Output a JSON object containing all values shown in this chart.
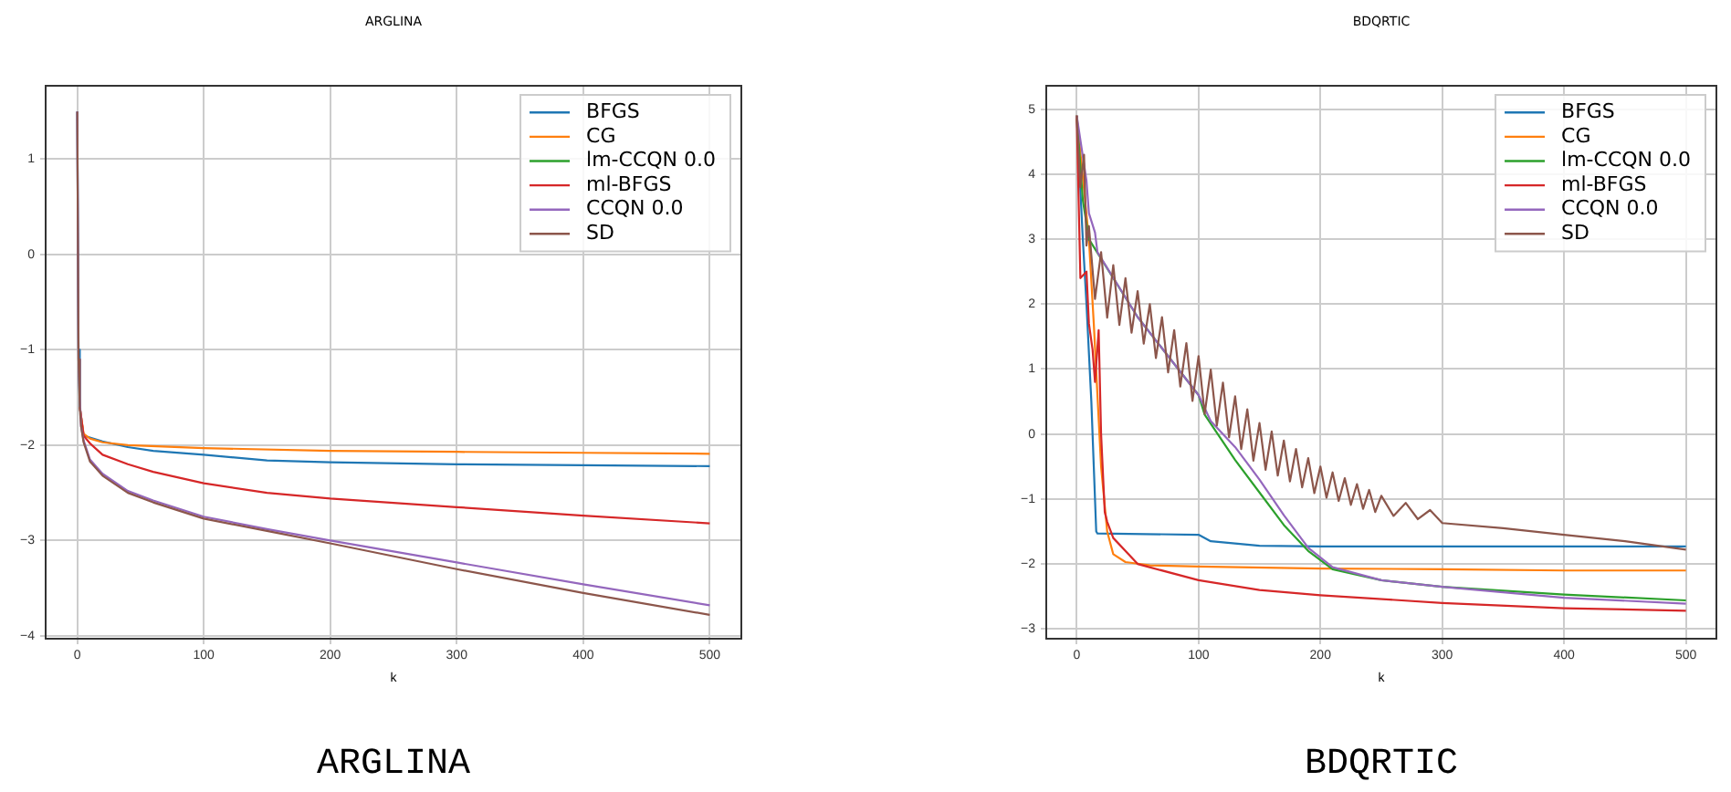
{
  "chart_data": [
    {
      "type": "line",
      "title": "ARGLINA",
      "xlabel": "k",
      "annotations": [
        "ARGLINA"
      ],
      "xlim": [
        -25,
        525
      ],
      "ylim": [
        -4.03,
        1.77
      ],
      "xticks": [
        0,
        100,
        200,
        300,
        400,
        500
      ],
      "yticks": [
        -4,
        -3,
        -2,
        -1,
        0,
        1
      ],
      "grid": true,
      "legend": "top right",
      "series": [
        {
          "name": "BFGS",
          "color": "#1f77b4",
          "x": [
            0,
            1,
            2,
            5,
            10,
            20,
            40,
            60,
            100,
            150,
            200,
            300,
            400,
            500
          ],
          "values": [
            1.5,
            -1.0,
            -1.6,
            -1.9,
            -1.92,
            -1.96,
            -2.02,
            -2.06,
            -2.1,
            -2.16,
            -2.18,
            -2.2,
            -2.21,
            -2.22
          ]
        },
        {
          "name": "CG",
          "color": "#ff7f0e",
          "x": [
            2,
            5,
            10,
            20,
            40,
            100,
            200,
            300,
            400,
            500
          ],
          "values": [
            -1.6,
            -1.88,
            -1.93,
            -1.97,
            -2.0,
            -2.03,
            -2.06,
            -2.07,
            -2.08,
            -2.09
          ]
        },
        {
          "name": "lm-CCQN 0.0",
          "color": "#2ca02c"
        },
        {
          "name": "ml-BFGS",
          "color": "#d62728",
          "x": [
            2,
            5,
            10,
            20,
            40,
            60,
            100,
            150,
            200,
            300,
            400,
            500
          ],
          "values": [
            -1.6,
            -1.9,
            -1.98,
            -2.1,
            -2.2,
            -2.28,
            -2.4,
            -2.5,
            -2.56,
            -2.65,
            -2.74,
            -2.82
          ]
        },
        {
          "name": "CCQN 0.0",
          "color": "#9467bd",
          "x": [
            0,
            1,
            2,
            3,
            5,
            10,
            20,
            40,
            60,
            100,
            150,
            200,
            300,
            400,
            500
          ],
          "values": [
            1.5,
            -1.1,
            -1.5,
            -1.8,
            -1.95,
            -2.15,
            -2.3,
            -2.48,
            -2.58,
            -2.75,
            -2.88,
            -3.0,
            -3.23,
            -3.46,
            -3.68
          ]
        },
        {
          "name": "SD",
          "color": "#8c564b",
          "x": [
            0,
            1,
            2,
            3,
            5,
            10,
            20,
            40,
            60,
            100,
            150,
            200,
            300,
            400,
            500
          ],
          "values": [
            1.5,
            -1.1,
            -1.6,
            -1.8,
            -1.97,
            -2.17,
            -2.32,
            -2.5,
            -2.6,
            -2.77,
            -2.9,
            -3.03,
            -3.3,
            -3.55,
            -3.78
          ]
        }
      ]
    },
    {
      "type": "line",
      "title": "BDQRTIC",
      "xlabel": "k",
      "annotations": [
        "BDQRTIC"
      ],
      "xlim": [
        -25,
        525
      ],
      "ylim": [
        -3.15,
        5.36
      ],
      "xticks": [
        0,
        100,
        200,
        300,
        400,
        500
      ],
      "yticks": [
        -3,
        -2,
        -1,
        0,
        1,
        2,
        3,
        4,
        5
      ],
      "grid": true,
      "legend": "top right",
      "series": [
        {
          "name": "BFGS",
          "color": "#1f77b4",
          "x": [
            0,
            5,
            8,
            12,
            16,
            17,
            100,
            110,
            150,
            200,
            500
          ],
          "values": [
            4.9,
            3.0,
            2.0,
            0.5,
            -1.5,
            -1.53,
            -1.55,
            -1.65,
            -1.72,
            -1.73,
            -1.73
          ]
        },
        {
          "name": "CG",
          "color": "#ff7f0e",
          "x": [
            0,
            10,
            14,
            20,
            25,
            30,
            40,
            60,
            100,
            200,
            300,
            400,
            500
          ],
          "values": [
            4.9,
            3.0,
            1.7,
            -0.5,
            -1.5,
            -1.85,
            -1.97,
            -2.02,
            -2.04,
            -2.07,
            -2.08,
            -2.1,
            -2.1
          ]
        },
        {
          "name": "lm-CCQN 0.0",
          "color": "#2ca02c",
          "x": [
            0,
            5,
            10,
            50,
            100,
            105,
            130,
            150,
            170,
            190,
            210,
            250,
            300,
            400,
            500
          ],
          "values": [
            4.9,
            3.6,
            3.0,
            1.8,
            0.6,
            0.3,
            -0.4,
            -0.9,
            -1.4,
            -1.8,
            -2.08,
            -2.25,
            -2.35,
            -2.47,
            -2.56
          ]
        },
        {
          "name": "ml-BFGS",
          "color": "#d62728",
          "x": [
            0,
            3,
            8,
            10,
            13,
            15,
            18,
            20,
            23,
            25,
            30,
            50,
            100,
            150,
            200,
            300,
            400,
            500
          ],
          "values": [
            4.9,
            2.4,
            2.5,
            1.7,
            1.3,
            0.8,
            1.6,
            0.0,
            -1.2,
            -1.35,
            -1.6,
            -2.0,
            -2.25,
            -2.4,
            -2.48,
            -2.6,
            -2.68,
            -2.72
          ]
        },
        {
          "name": "CCQN 0.0",
          "color": "#9467bd",
          "x": [
            0,
            8,
            10,
            15,
            17,
            50,
            100,
            110,
            130,
            150,
            170,
            190,
            210,
            250,
            300,
            400,
            500
          ],
          "values": [
            4.9,
            3.9,
            3.4,
            3.1,
            2.8,
            1.8,
            0.6,
            0.2,
            -0.2,
            -0.7,
            -1.25,
            -1.75,
            -2.05,
            -2.25,
            -2.35,
            -2.52,
            -2.61
          ]
        },
        {
          "name": "SD",
          "color": "#8c564b",
          "x": [
            0,
            3,
            6,
            8,
            10,
            15,
            20,
            25,
            30,
            35,
            40,
            45,
            50,
            55,
            60,
            65,
            70,
            75,
            80,
            85,
            90,
            95,
            100,
            105,
            110,
            115,
            120,
            125,
            130,
            135,
            140,
            145,
            150,
            155,
            160,
            165,
            170,
            175,
            180,
            185,
            190,
            195,
            200,
            205,
            210,
            215,
            220,
            225,
            230,
            235,
            240,
            245,
            250,
            260,
            270,
            280,
            290,
            300,
            350,
            400,
            450,
            500
          ],
          "values": [
            4.9,
            3.8,
            4.3,
            2.9,
            3.2,
            2.08,
            2.8,
            1.79,
            2.6,
            1.68,
            2.4,
            1.56,
            2.2,
            1.39,
            2.0,
            1.17,
            1.8,
            0.95,
            1.6,
            0.73,
            1.4,
            0.51,
            1.2,
            0.31,
            0.99,
            0.13,
            0.79,
            -0.05,
            0.58,
            -0.23,
            0.38,
            -0.41,
            0.17,
            -0.55,
            0.04,
            -0.64,
            -0.1,
            -0.73,
            -0.23,
            -0.82,
            -0.37,
            -0.91,
            -0.5,
            -0.98,
            -0.59,
            -1.03,
            -0.68,
            -1.09,
            -0.77,
            -1.15,
            -0.86,
            -1.2,
            -0.95,
            -1.26,
            -1.06,
            -1.31,
            -1.17,
            -1.37,
            -1.45,
            -1.55,
            -1.65,
            -1.78
          ]
        }
      ]
    }
  ]
}
